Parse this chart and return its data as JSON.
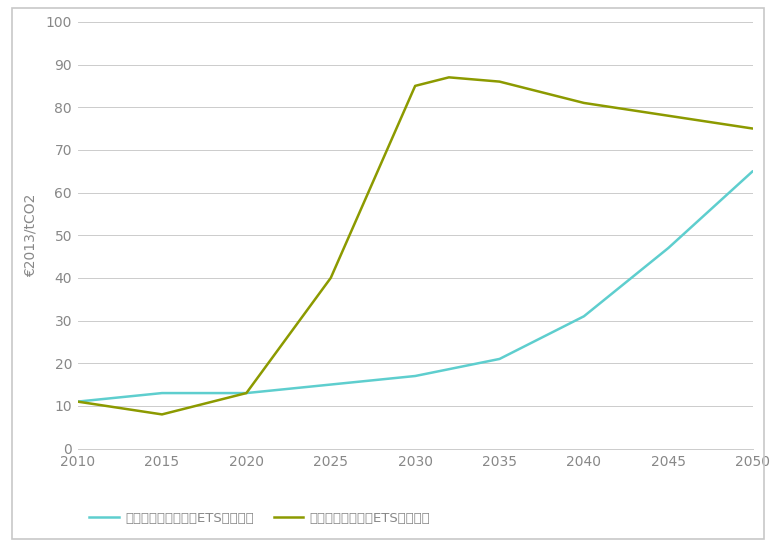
{
  "line1_label": "未纳入交通和建筑的ETS配额价格",
  "line1_color": "#5ecece",
  "line1_x": [
    2010,
    2015,
    2020,
    2025,
    2030,
    2035,
    2040,
    2045,
    2050
  ],
  "line1_y": [
    11,
    13,
    13,
    15,
    17,
    21,
    31,
    47,
    65
  ],
  "line2_label": "纳入交通和建筑的ETS配额价格",
  "line2_color": "#8c9a00",
  "line2_x": [
    2010,
    2015,
    2020,
    2025,
    2030,
    2032,
    2035,
    2040,
    2045,
    2050
  ],
  "line2_y": [
    11,
    8,
    13,
    40,
    85,
    87,
    86,
    81,
    78,
    75
  ],
  "ylabel": "€2013/tCO2",
  "ylim": [
    0,
    100
  ],
  "yticks": [
    0,
    10,
    20,
    30,
    40,
    50,
    60,
    70,
    80,
    90,
    100
  ],
  "xlim": [
    2010,
    2050
  ],
  "xticks": [
    2010,
    2015,
    2020,
    2025,
    2030,
    2035,
    2040,
    2045,
    2050
  ],
  "background_color": "#ffffff",
  "grid_color": "#cccccc",
  "tick_color": "#888888",
  "label_color": "#888888",
  "linewidth": 1.8,
  "figsize": [
    7.76,
    5.47
  ],
  "dpi": 100
}
